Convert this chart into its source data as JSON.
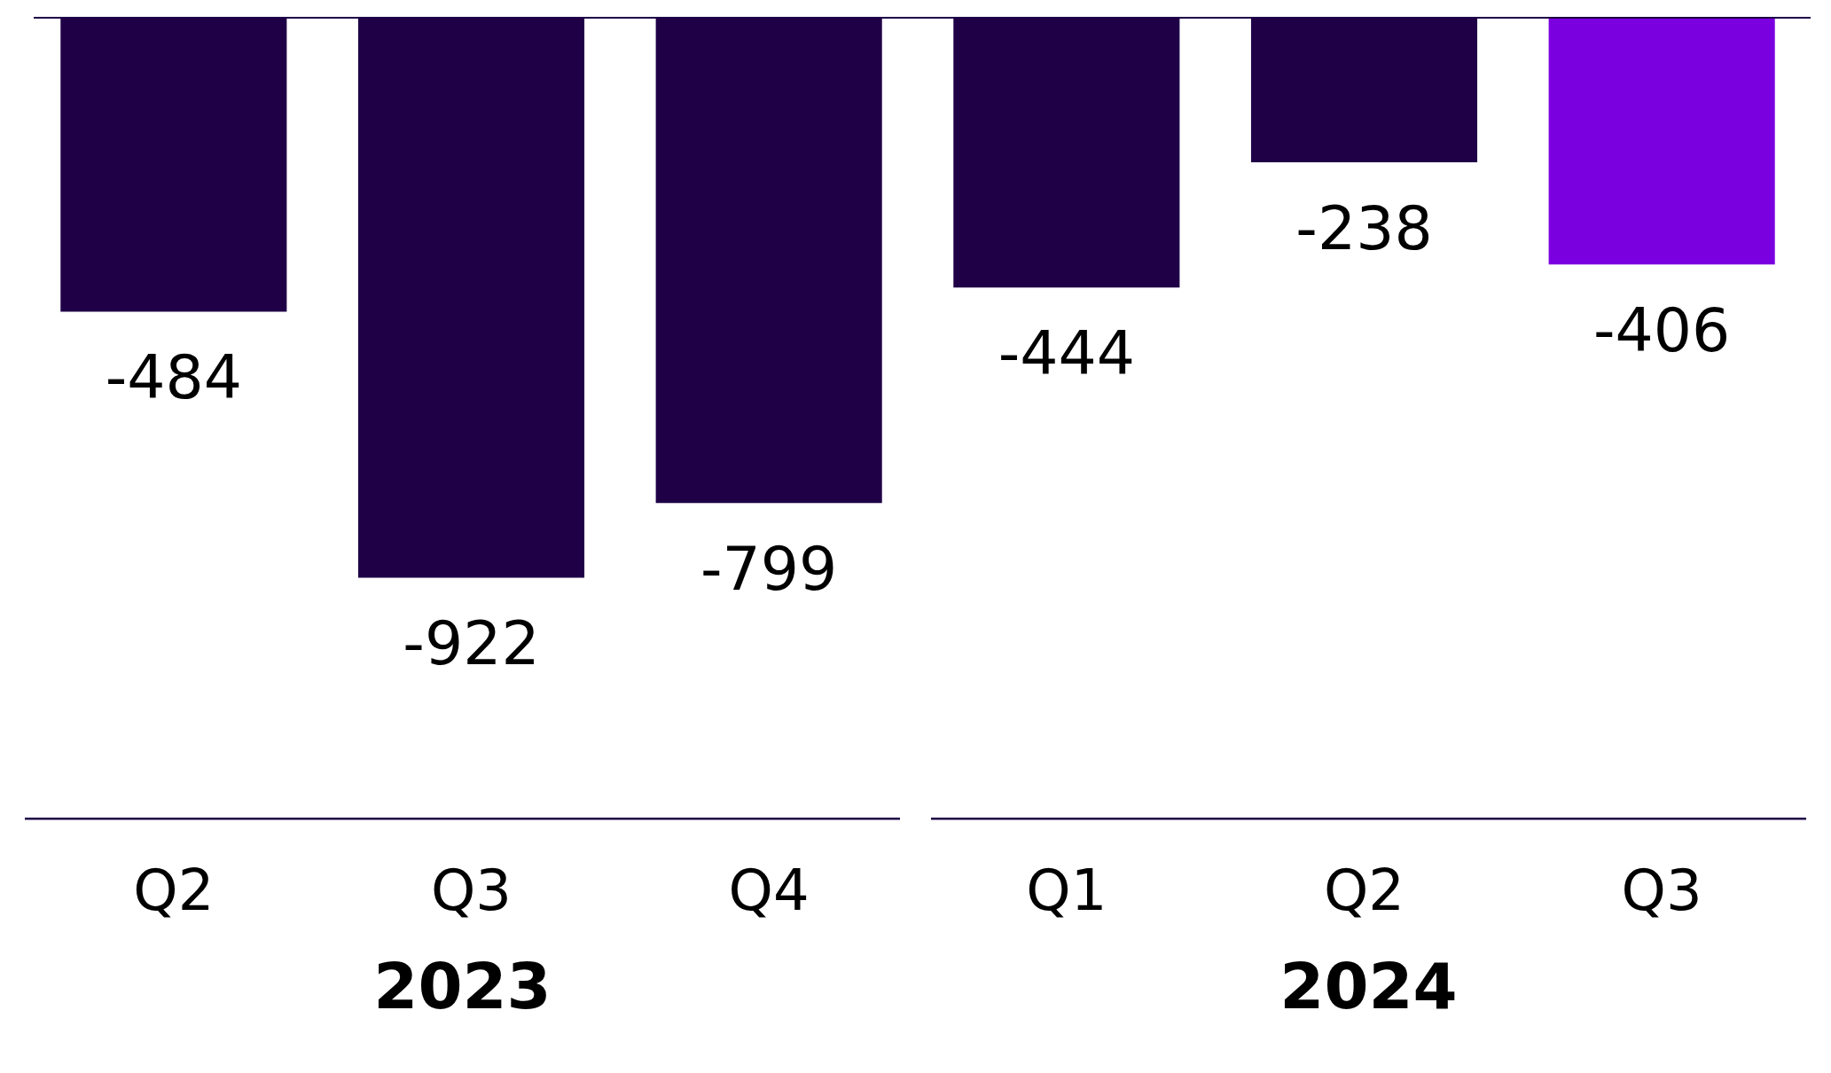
{
  "chart_data": {
    "type": "bar",
    "categories": [
      "Q2",
      "Q3",
      "Q4",
      "Q1",
      "Q2",
      "Q3"
    ],
    "values": [
      -484,
      -922,
      -799,
      -444,
      -238,
      -406
    ],
    "colors": [
      "#1f0047",
      "#1f0047",
      "#1f0047",
      "#1f0047",
      "#1f0047",
      "#7b00e0"
    ],
    "data_labels": true,
    "annotations": [
      "2023",
      "2024"
    ]
  }
}
